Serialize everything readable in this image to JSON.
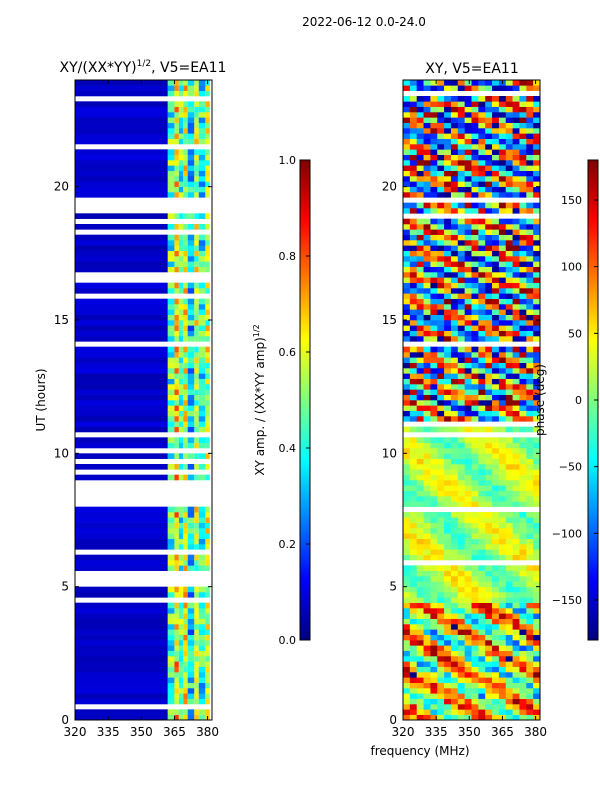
{
  "figure_title": "2022-06-12 0.0-24.0",
  "colors": {
    "jet": [
      "#00007f",
      "#0000ff",
      "#007fff",
      "#00ffff",
      "#7fff7f",
      "#ffff00",
      "#ff7f00",
      "#ff0000",
      "#7f0000"
    ],
    "gap": "#ffffff"
  },
  "chart_data": [
    {
      "type": "heatmap",
      "title_main": "XY/(XX*YY)",
      "title_sup": "1/2",
      "title_rest": ", V5=EA11",
      "xlabel": "",
      "ylabel": "UT (hours)",
      "xlim": [
        320,
        382
      ],
      "ylim": [
        0,
        24
      ],
      "xticks": [
        320,
        335,
        350,
        365,
        380
      ],
      "yticks": [
        0,
        5,
        10,
        15,
        20
      ],
      "quantity": "normalized XY amplitude",
      "colorbar": {
        "label_main": "XY amp. / (XX*YY amp)",
        "label_sup": "1/2",
        "range": [
          0.0,
          1.0
        ],
        "ticks": [
          "0.0",
          "0.2",
          "0.4",
          "0.6",
          "0.8",
          "1.0"
        ]
      },
      "background_value": 0.05,
      "channel_features": [
        {
          "freq_range": [
            320,
            362
          ],
          "value": 0.05
        },
        {
          "freq_range": [
            362,
            365
          ],
          "value": 0.45
        },
        {
          "freq_range": [
            365,
            367
          ],
          "value": 0.65
        },
        {
          "freq_range": [
            367,
            369
          ],
          "value": 0.45
        },
        {
          "freq_range": [
            369,
            371
          ],
          "value": 0.6
        },
        {
          "freq_range": [
            371,
            374
          ],
          "value": 0.35
        },
        {
          "freq_range": [
            374,
            376
          ],
          "value": 0.55
        },
        {
          "freq_range": [
            376,
            379
          ],
          "value": 0.4
        },
        {
          "freq_range": [
            379,
            381
          ],
          "value": 0.55
        }
      ],
      "flagged_time_bands_hours": [
        [
          23.3,
          23.4
        ],
        [
          22.6,
          22.7
        ],
        [
          21.4,
          21.6
        ],
        [
          19.3,
          19.7
        ],
        [
          18.3,
          18.4
        ],
        [
          17.8,
          17.9
        ],
        [
          16.7,
          16.8
        ],
        [
          14.1,
          14.2
        ],
        [
          11.0,
          11.1
        ],
        [
          8.3,
          9.0
        ],
        [
          7.8,
          7.9
        ],
        [
          6.3,
          6.4
        ],
        [
          5.0,
          5.6
        ],
        [
          4.5,
          4.6
        ],
        [
          3.2,
          3.3
        ],
        [
          1.6,
          1.7
        ]
      ]
    },
    {
      "type": "heatmap",
      "title": "XY, V5=EA11",
      "xlabel": "frequency (MHz)",
      "ylabel": "",
      "xlim": [
        320,
        382
      ],
      "ylim": [
        0,
        24
      ],
      "xticks": [
        320,
        335,
        350,
        365,
        380
      ],
      "yticks": [
        0,
        5,
        10,
        15,
        20
      ],
      "quantity": "XY phase (deg)",
      "colorbar": {
        "label": "phase (deg)",
        "range": [
          -180,
          180
        ],
        "ticks": [
          "−150",
          "−100",
          "−50",
          "0",
          "50",
          "100",
          "150"
        ]
      },
      "description_regions": [
        {
          "time_range": [
            0,
            4.5
          ],
          "phase_character": "mixed, mostly positive (yellow/orange/red)"
        },
        {
          "time_range": [
            4.5,
            11.2
          ],
          "phase_character": "near zero to +50 (cyan/yellow)"
        },
        {
          "time_range": [
            11.2,
            24
          ],
          "phase_character": "wrapping across full range"
        }
      ]
    }
  ]
}
